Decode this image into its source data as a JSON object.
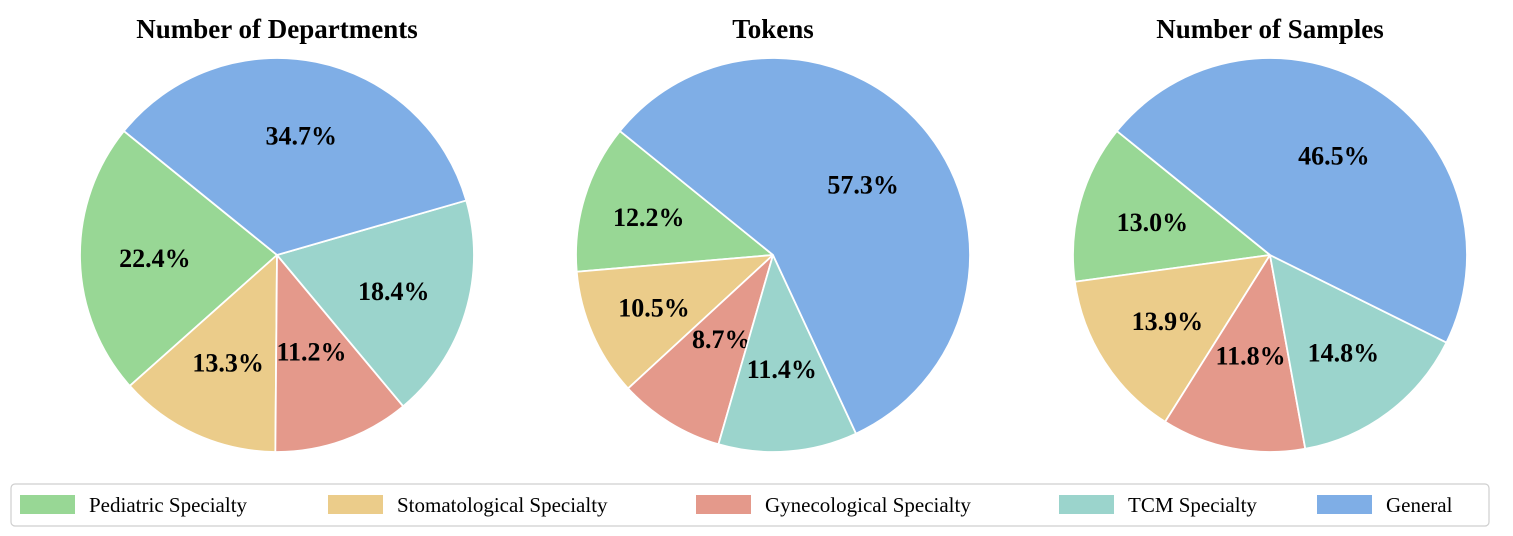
{
  "categories": [
    "Pediatric Specialty",
    "Stomatological Specialty",
    "Gynecological Specialty",
    "TCM Specialty",
    "General"
  ],
  "colors": {
    "Pediatric Specialty": "#98d795",
    "Stomatological Specialty": "#ebcc8a",
    "Gynecological Specialty": "#e4998b",
    "TCM Specialty": "#9bd4cc",
    "General": "#7faee6"
  },
  "chart_data": [
    {
      "type": "pie",
      "title": "Number of Departments",
      "slices": [
        {
          "name": "Pediatric Specialty",
          "value": 22.4,
          "label": "22.4%"
        },
        {
          "name": "Stomatological Specialty",
          "value": 13.3,
          "label": "13.3%"
        },
        {
          "name": "Gynecological Specialty",
          "value": 11.2,
          "label": "11.2%"
        },
        {
          "name": "TCM Specialty",
          "value": 18.4,
          "label": "18.4%"
        },
        {
          "name": "General",
          "value": 34.7,
          "label": "34.7%"
        }
      ]
    },
    {
      "type": "pie",
      "title": "Tokens",
      "slices": [
        {
          "name": "Pediatric Specialty",
          "value": 12.2,
          "label": "12.2%"
        },
        {
          "name": "Stomatological Specialty",
          "value": 10.5,
          "label": "10.5%"
        },
        {
          "name": "Gynecological Specialty",
          "value": 8.7,
          "label": "8.7%"
        },
        {
          "name": "TCM Specialty",
          "value": 11.4,
          "label": "11.4%"
        },
        {
          "name": "General",
          "value": 57.3,
          "label": "57.3%"
        }
      ]
    },
    {
      "type": "pie",
      "title": "Number of Samples",
      "slices": [
        {
          "name": "Pediatric Specialty",
          "value": 13.0,
          "label": "13.0%"
        },
        {
          "name": "Stomatological Specialty",
          "value": 13.9,
          "label": "13.9%"
        },
        {
          "name": "Gynecological Specialty",
          "value": 11.8,
          "label": "11.8%"
        },
        {
          "name": "TCM Specialty",
          "value": 14.8,
          "label": "14.8%"
        },
        {
          "name": "General",
          "value": 46.5,
          "label": "46.5%"
        }
      ]
    }
  ],
  "legend": {
    "placement": "bottom",
    "entries": [
      "Pediatric Specialty",
      "Stomatological Specialty",
      "Gynecological Specialty",
      "TCM Specialty",
      "General"
    ]
  }
}
